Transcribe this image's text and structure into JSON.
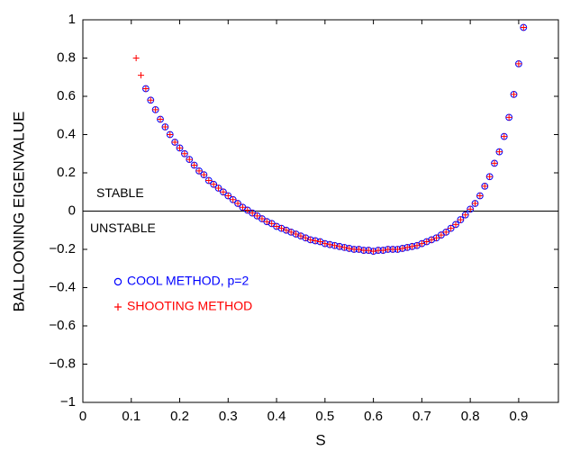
{
  "chart_data": {
    "type": "scatter",
    "x_label": "S",
    "y_label": "BALLOONING EIGENVALUE",
    "annotations": [
      "STABLE",
      "UNSTABLE"
    ],
    "xlim": [
      0,
      0.982
    ],
    "ylim": [
      -1,
      1
    ],
    "xticks": [
      0,
      0.1,
      0.2,
      0.3,
      0.4,
      0.5,
      0.6,
      0.7,
      0.8,
      0.9
    ],
    "yticks": [
      {
        "value": -1,
        "label": "−1"
      },
      {
        "value": -0.8,
        "label": "−0.8"
      },
      {
        "value": -0.6,
        "label": "−0.6"
      },
      {
        "value": -0.4,
        "label": "−0.4"
      },
      {
        "value": -0.2,
        "label": "−0.2"
      },
      0,
      0.2,
      0.4,
      0.6,
      0.8,
      1
    ],
    "series": [
      {
        "name": "COOL METHOD, p=2",
        "marker": "o",
        "color": "#0000ff",
        "x": [
          0.13,
          0.14,
          0.15,
          0.16,
          0.17,
          0.18,
          0.19,
          0.2,
          0.21,
          0.22,
          0.23,
          0.24,
          0.25,
          0.26,
          0.27,
          0.28,
          0.29,
          0.3,
          0.31,
          0.32,
          0.33,
          0.34,
          0.35,
          0.36,
          0.37,
          0.38,
          0.39,
          0.4,
          0.41,
          0.42,
          0.43,
          0.44,
          0.45,
          0.46,
          0.47,
          0.48,
          0.49,
          0.5,
          0.51,
          0.52,
          0.53,
          0.54,
          0.55,
          0.56,
          0.57,
          0.58,
          0.59,
          0.6,
          0.61,
          0.62,
          0.63,
          0.64,
          0.65,
          0.66,
          0.67,
          0.68,
          0.69,
          0.7,
          0.71,
          0.72,
          0.73,
          0.74,
          0.75,
          0.76,
          0.77,
          0.78,
          0.79,
          0.8,
          0.81,
          0.82,
          0.83,
          0.84,
          0.85,
          0.86,
          0.87,
          0.88,
          0.89,
          0.9,
          0.91
        ],
        "values": [
          0.64,
          0.58,
          0.53,
          0.48,
          0.44,
          0.4,
          0.36,
          0.33,
          0.3,
          0.27,
          0.24,
          0.21,
          0.19,
          0.16,
          0.14,
          0.12,
          0.1,
          0.08,
          0.06,
          0.04,
          0.02,
          0.005,
          -0.01,
          -0.025,
          -0.04,
          -0.055,
          -0.065,
          -0.08,
          -0.09,
          -0.1,
          -0.11,
          -0.12,
          -0.13,
          -0.14,
          -0.15,
          -0.155,
          -0.16,
          -0.17,
          -0.175,
          -0.18,
          -0.185,
          -0.19,
          -0.195,
          -0.2,
          -0.2,
          -0.205,
          -0.205,
          -0.21,
          -0.205,
          -0.205,
          -0.2,
          -0.2,
          -0.2,
          -0.195,
          -0.19,
          -0.185,
          -0.18,
          -0.17,
          -0.16,
          -0.15,
          -0.14,
          -0.125,
          -0.11,
          -0.09,
          -0.07,
          -0.045,
          -0.02,
          0.01,
          0.04,
          0.08,
          0.13,
          0.18,
          0.25,
          0.31,
          0.39,
          0.49,
          0.61,
          0.77,
          0.96
        ]
      },
      {
        "name": "SHOOTING METHOD",
        "marker": "+",
        "color": "#ff0000",
        "x": [
          0.11,
          0.12,
          0.13,
          0.14,
          0.15,
          0.16,
          0.17,
          0.18,
          0.19,
          0.2,
          0.21,
          0.22,
          0.23,
          0.24,
          0.25,
          0.26,
          0.27,
          0.28,
          0.29,
          0.3,
          0.31,
          0.32,
          0.33,
          0.34,
          0.35,
          0.36,
          0.37,
          0.38,
          0.39,
          0.4,
          0.41,
          0.42,
          0.43,
          0.44,
          0.45,
          0.46,
          0.47,
          0.48,
          0.49,
          0.5,
          0.51,
          0.52,
          0.53,
          0.54,
          0.55,
          0.56,
          0.57,
          0.58,
          0.59,
          0.6,
          0.61,
          0.62,
          0.63,
          0.64,
          0.65,
          0.66,
          0.67,
          0.68,
          0.69,
          0.7,
          0.71,
          0.72,
          0.73,
          0.74,
          0.75,
          0.76,
          0.77,
          0.78,
          0.79,
          0.8,
          0.81,
          0.82,
          0.83,
          0.84,
          0.85,
          0.86,
          0.87,
          0.88,
          0.89,
          0.9,
          0.91
        ],
        "values": [
          0.8,
          0.71,
          0.64,
          0.58,
          0.53,
          0.48,
          0.44,
          0.4,
          0.36,
          0.33,
          0.3,
          0.27,
          0.24,
          0.21,
          0.19,
          0.16,
          0.14,
          0.12,
          0.1,
          0.08,
          0.06,
          0.04,
          0.02,
          0.005,
          -0.01,
          -0.025,
          -0.04,
          -0.055,
          -0.065,
          -0.08,
          -0.09,
          -0.1,
          -0.11,
          -0.12,
          -0.13,
          -0.14,
          -0.15,
          -0.155,
          -0.16,
          -0.17,
          -0.175,
          -0.18,
          -0.185,
          -0.19,
          -0.195,
          -0.2,
          -0.2,
          -0.205,
          -0.205,
          -0.21,
          -0.205,
          -0.205,
          -0.2,
          -0.2,
          -0.2,
          -0.195,
          -0.19,
          -0.185,
          -0.18,
          -0.17,
          -0.16,
          -0.15,
          -0.14,
          -0.125,
          -0.11,
          -0.09,
          -0.07,
          -0.045,
          -0.02,
          0.01,
          0.04,
          0.08,
          0.13,
          0.18,
          0.25,
          0.31,
          0.39,
          0.49,
          0.61,
          0.77,
          0.96
        ]
      }
    ]
  }
}
